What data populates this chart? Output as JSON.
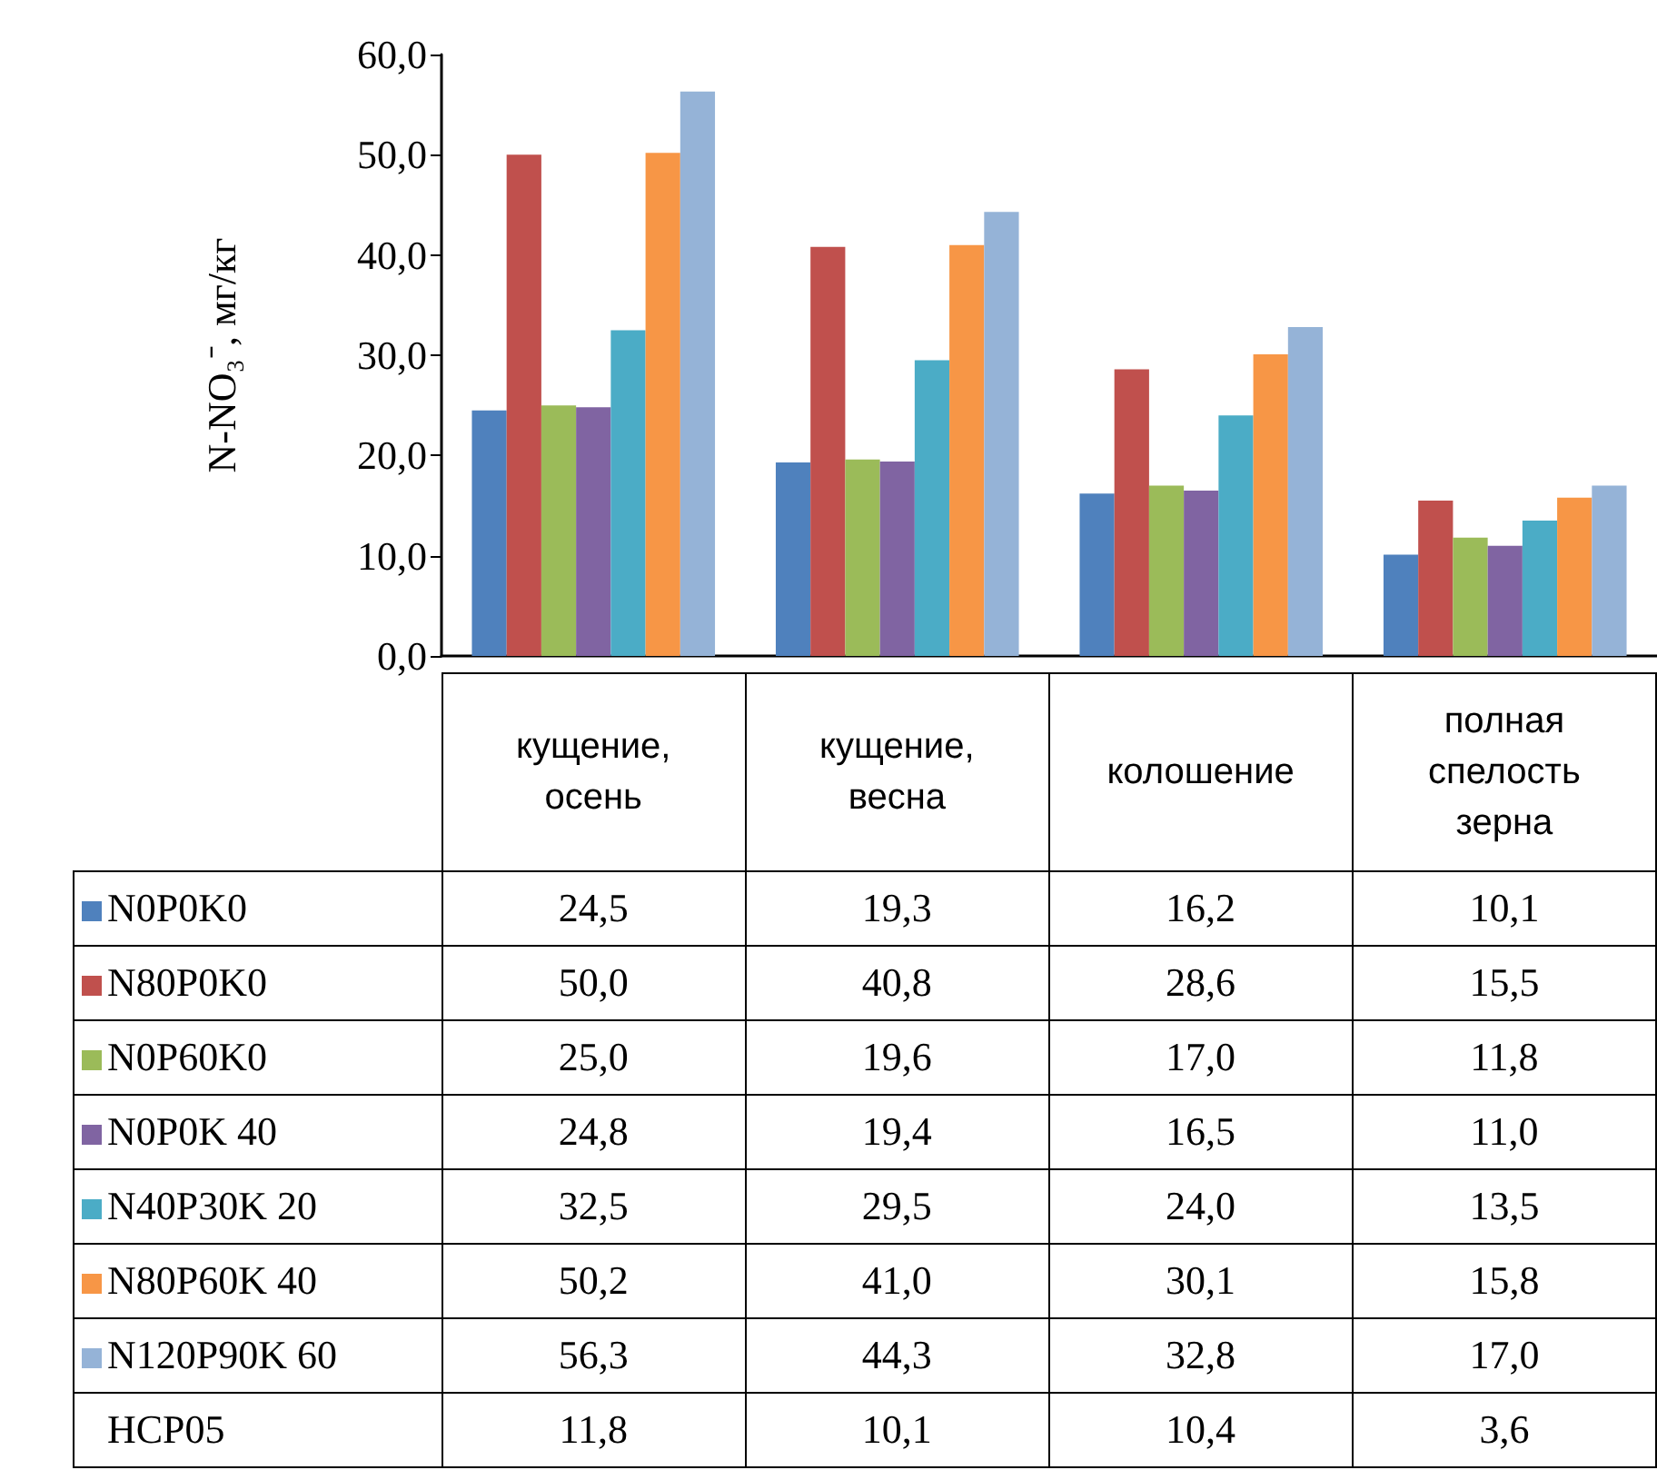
{
  "chart_data": {
    "type": "bar",
    "ylabel": "N-NO₃⁻, мг/кг",
    "categories": [
      "кущение, осень",
      "кущение, весна",
      "колошение",
      "полная спелость зерна"
    ],
    "series": [
      {
        "name": "N0P0K0",
        "color": "#4f81bd",
        "values": [
          24.5,
          19.3,
          16.2,
          10.1
        ],
        "value_labels": [
          "24,5",
          "19,3",
          "16,2",
          "10,1"
        ]
      },
      {
        "name": "N80P0K0",
        "color": "#c0504d",
        "values": [
          50.0,
          40.8,
          28.6,
          15.5
        ],
        "value_labels": [
          "50,0",
          "40,8",
          "28,6",
          "15,5"
        ]
      },
      {
        "name": "N0P60K0",
        "color": "#9bbb59",
        "values": [
          25.0,
          19.6,
          17.0,
          11.8
        ],
        "value_labels": [
          "25,0",
          "19,6",
          "17,0",
          "11,8"
        ]
      },
      {
        "name": "N0P0K 40",
        "color": "#8064a2",
        "values": [
          24.8,
          19.4,
          16.5,
          11.0
        ],
        "value_labels": [
          "24,8",
          "19,4",
          "16,5",
          "11,0"
        ]
      },
      {
        "name": "N40P30K 20",
        "color": "#4bacc6",
        "values": [
          32.5,
          29.5,
          24.0,
          13.5
        ],
        "value_labels": [
          "32,5",
          "29,5",
          "24,0",
          "13,5"
        ]
      },
      {
        "name": "N80P60K 40",
        "color": "#f79646",
        "values": [
          50.2,
          41.0,
          30.1,
          15.8
        ],
        "value_labels": [
          "50,2",
          "41,0",
          "30,1",
          "15,8"
        ]
      },
      {
        "name": "N120P90K 60",
        "color": "#95b3d7",
        "values": [
          56.3,
          44.3,
          32.8,
          17.0
        ],
        "value_labels": [
          "56,3",
          "44,3",
          "32,8",
          "17,0"
        ]
      }
    ],
    "ylim": [
      0,
      60
    ],
    "yticks": [
      {
        "value": 0,
        "label": "0,0"
      },
      {
        "value": 10,
        "label": "10,0"
      },
      {
        "value": 20,
        "label": "20,0"
      },
      {
        "value": 30,
        "label": "30,0"
      },
      {
        "value": 40,
        "label": "40,0"
      },
      {
        "value": 50,
        "label": "50,0"
      },
      {
        "value": 60,
        "label": "60,0"
      }
    ],
    "legend": "bottom",
    "annotations": [
      "НСР05",
      "11,8",
      "10,1",
      "10,4",
      "3,6"
    ]
  }
}
